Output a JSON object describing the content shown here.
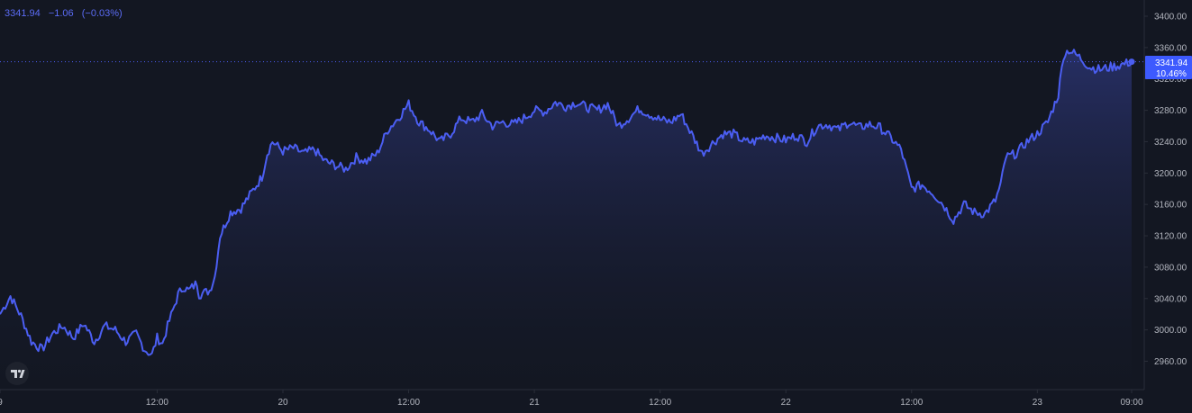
{
  "legend": {
    "last": "3341.94",
    "change": "−1.06",
    "change_pct": "(−0.03%)"
  },
  "price_label": {
    "value": "3341.94",
    "percent": "10.46%"
  },
  "colors": {
    "background": "#131722",
    "line": "#4b5ef2",
    "axis_text": "#b2b5be",
    "label_bg": "#3d5afe"
  },
  "logo_icon": "tradingview-logo-icon",
  "chart_data": {
    "type": "area",
    "title": "",
    "xlabel": "",
    "ylabel": "",
    "ylim": [
      2930,
      3420
    ],
    "y_ticks": [
      "3400.00",
      "3360.00",
      "3320.00",
      "3280.00",
      "3240.00",
      "3200.00",
      "3160.00",
      "3120.00",
      "3080.00",
      "3040.00",
      "3000.00",
      "2960.00"
    ],
    "y_tick_values": [
      3400,
      3360,
      3320,
      3280,
      3240,
      3200,
      3160,
      3120,
      3080,
      3040,
      3000,
      2960
    ],
    "x_ticks": [
      "9",
      "12:00",
      "20",
      "12:00",
      "21",
      "12:00",
      "22",
      "12:00",
      "23",
      "09:00"
    ],
    "x_tick_hours": [
      -3,
      12,
      24,
      36,
      48,
      60,
      72,
      84,
      96,
      105
    ],
    "x_unit": "hours since Jul 20 00:00",
    "series": [
      {
        "name": "",
        "x": [
          -3,
          -2,
          -1,
          0,
          1,
          2,
          3,
          4,
          5,
          6,
          7,
          8,
          9,
          10,
          10.8,
          11.5,
          12,
          12.5,
          13,
          14,
          14.5,
          15,
          15.8,
          16,
          17,
          17.5,
          18,
          19,
          20,
          20.5,
          21,
          22,
          22.5,
          23,
          24,
          25,
          26,
          27,
          28,
          29,
          30,
          31,
          32,
          33,
          34,
          35,
          36,
          37,
          38,
          39,
          40,
          41,
          42,
          43,
          44,
          45,
          46,
          47,
          48,
          49,
          50,
          51,
          52,
          53,
          54,
          55,
          56,
          57,
          58,
          59,
          60,
          61,
          62,
          63,
          64,
          65,
          66,
          67,
          68,
          69,
          70,
          71,
          72,
          73,
          74,
          75,
          76,
          77,
          78,
          79,
          80,
          81,
          82,
          83,
          84,
          85,
          86,
          87,
          88,
          89,
          90,
          91,
          92,
          92.5,
          93,
          94,
          95,
          96,
          97,
          98,
          98.5,
          99,
          100,
          101,
          102,
          103,
          104,
          105
        ],
        "values": [
          3020,
          3043,
          3018,
          2985,
          2975,
          2995,
          3005,
          2990,
          3008,
          2985,
          3005,
          3000,
          2985,
          2995,
          2975,
          2968,
          2990,
          2982,
          3005,
          3045,
          3055,
          3050,
          3060,
          3045,
          3050,
          3068,
          3120,
          3150,
          3155,
          3165,
          3175,
          3195,
          3225,
          3240,
          3228,
          3232,
          3225,
          3230,
          3215,
          3210,
          3205,
          3220,
          3215,
          3225,
          3255,
          3270,
          3288,
          3265,
          3255,
          3240,
          3250,
          3270,
          3265,
          3275,
          3260,
          3265,
          3262,
          3270,
          3280,
          3278,
          3290,
          3285,
          3290,
          3284,
          3280,
          3288,
          3260,
          3270,
          3282,
          3275,
          3268,
          3265,
          3275,
          3250,
          3225,
          3238,
          3250,
          3250,
          3240,
          3240,
          3248,
          3245,
          3242,
          3248,
          3240,
          3260,
          3262,
          3255,
          3265,
          3258,
          3262,
          3258,
          3245,
          3230,
          3180,
          3185,
          3175,
          3160,
          3140,
          3160,
          3150,
          3148,
          3165,
          3185,
          3220,
          3225,
          3240,
          3250,
          3265,
          3300,
          3350,
          3357,
          3348,
          3335,
          3332,
          3335,
          3338,
          3341.94
        ]
      }
    ]
  }
}
